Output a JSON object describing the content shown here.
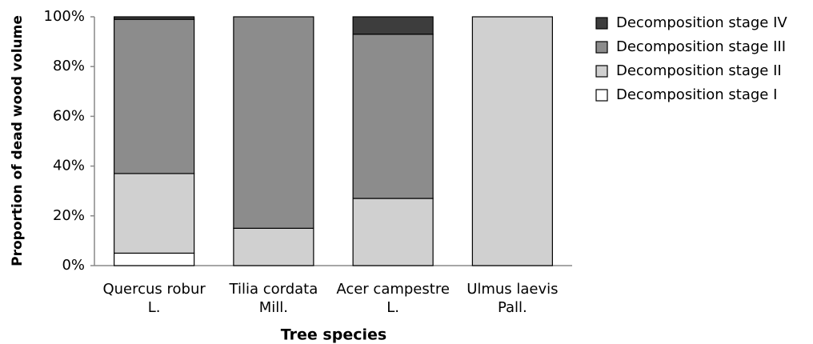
{
  "chart_data": {
    "type": "stacked_bar",
    "xlabel": "Tree species",
    "ylabel": "Proportion of dead wood volume",
    "categories": [
      "Quercus robur\nL.",
      "Tilia cordata\nMill.",
      "Acer campestre\nL.",
      "Ulmus laevis\nPall."
    ],
    "series": [
      {
        "name": "Decomposition stage I",
        "color": "#ffffff",
        "values": [
          5,
          0,
          0,
          0
        ]
      },
      {
        "name": "Decomposition stage II",
        "color": "#d0d0d0",
        "values": [
          32,
          15,
          27,
          100
        ]
      },
      {
        "name": "Decomposition stage III",
        "color": "#8c8c8c",
        "values": [
          62,
          85,
          66,
          0
        ]
      },
      {
        "name": "Decomposition stage IV",
        "color": "#3d3d3d",
        "values": [
          1,
          0,
          7,
          0
        ]
      }
    ],
    "ylim": [
      0,
      100
    ],
    "yticks": [
      {
        "value": 0,
        "label": "0%"
      },
      {
        "value": 20,
        "label": "20%"
      },
      {
        "value": 40,
        "label": "40%"
      },
      {
        "value": 60,
        "label": "60%"
      },
      {
        "value": 80,
        "label": "80%"
      },
      {
        "value": 100,
        "label": "100%"
      }
    ],
    "grid": false,
    "legend": "right"
  }
}
